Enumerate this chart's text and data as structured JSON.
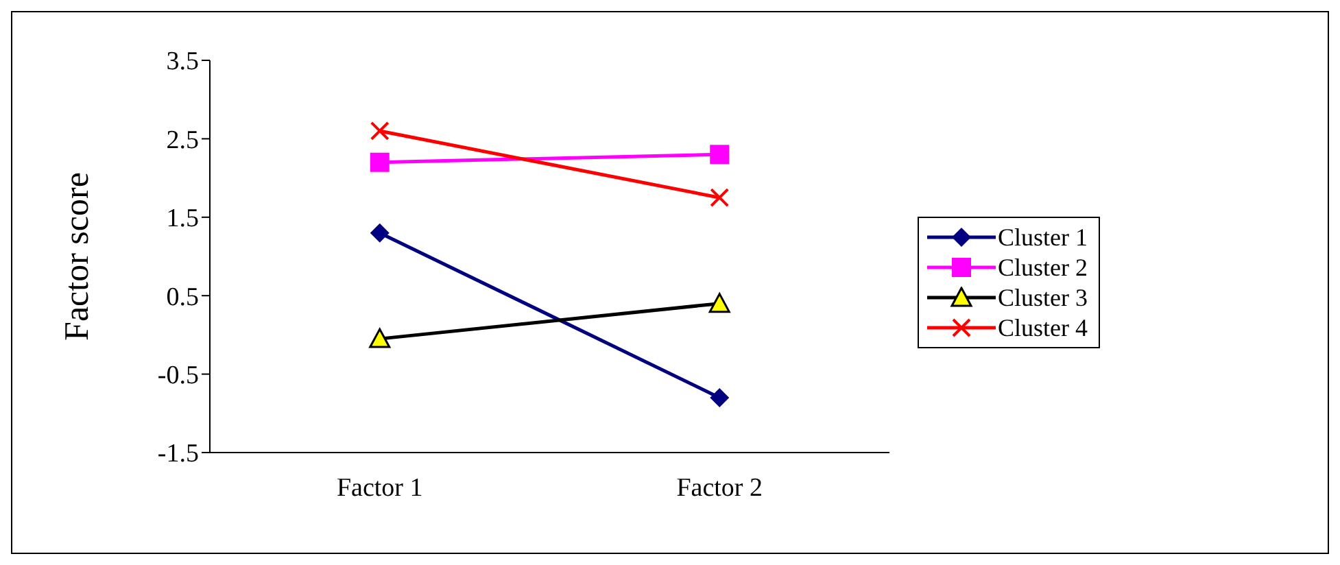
{
  "chart_data": {
    "type": "line",
    "ylabel": "Factor score",
    "categories": [
      "Factor 1",
      "Factor 2"
    ],
    "ylim": [
      -1.5,
      3.5
    ],
    "yticks": [
      -1.5,
      -0.5,
      0.5,
      1.5,
      2.5,
      3.5
    ],
    "grid": false,
    "legend": "right",
    "series": [
      {
        "name": "Cluster 1",
        "color": "#000080",
        "marker": "diamond",
        "values": [
          1.3,
          -0.8
        ]
      },
      {
        "name": "Cluster 2",
        "color": "#ff00ff",
        "marker": "square",
        "values": [
          2.2,
          2.3
        ]
      },
      {
        "name": "Cluster 3",
        "color": "#000000",
        "marker": "triangle",
        "values": [
          -0.05,
          0.4
        ]
      },
      {
        "name": "Cluster 4",
        "color": "#ff0000",
        "marker": "cross",
        "values": [
          2.6,
          1.75
        ]
      }
    ]
  }
}
